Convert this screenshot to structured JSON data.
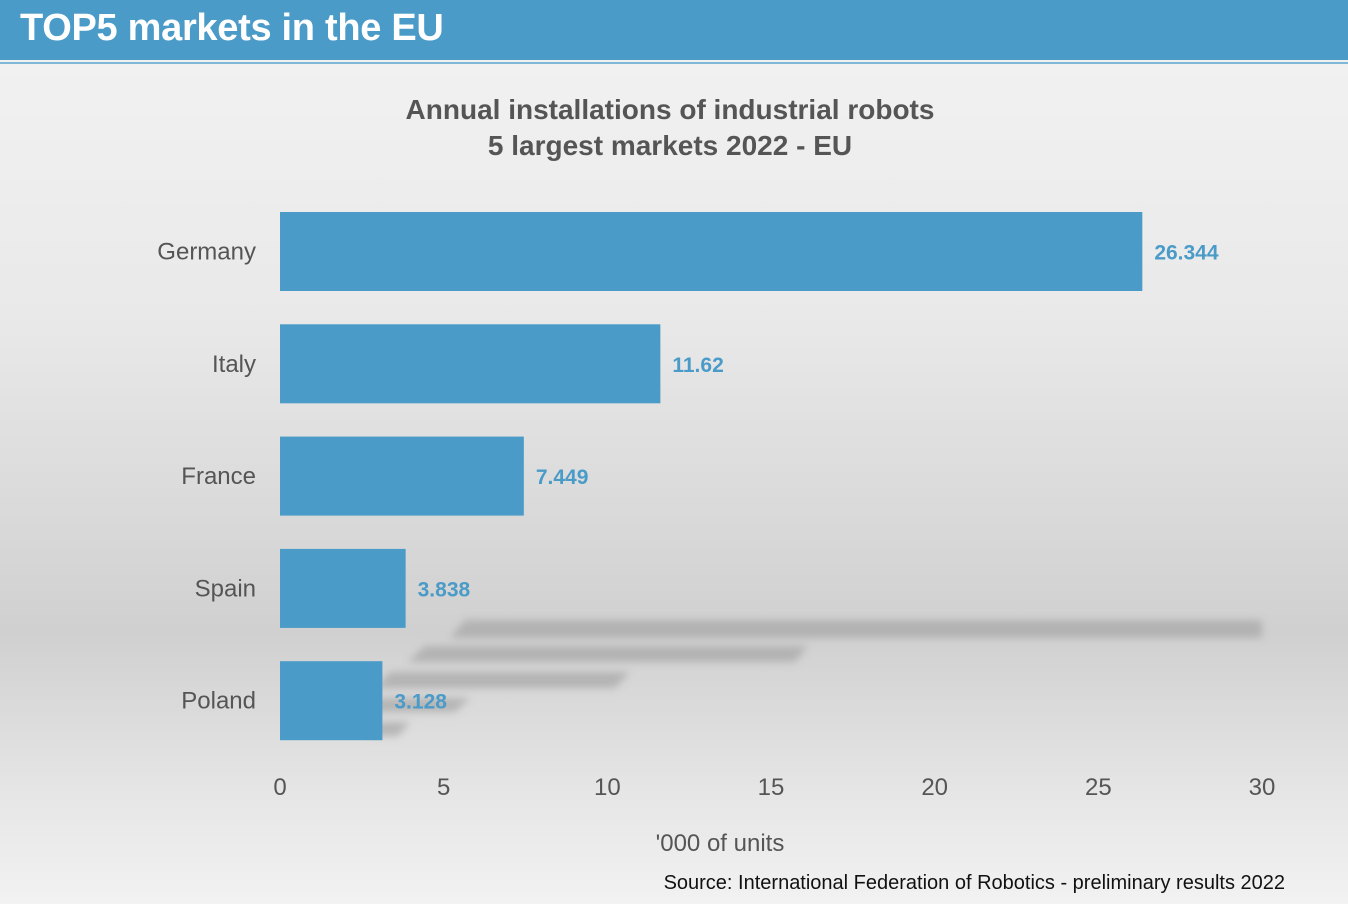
{
  "header": {
    "title": "TOP5 markets in the EU"
  },
  "chart_data": {
    "type": "bar",
    "orientation": "horizontal",
    "title_line1": "Annual installations of industrial robots",
    "title_line2": "5 largest markets 2022 - EU",
    "categories": [
      "Germany",
      "Italy",
      "France",
      "Spain",
      "Poland"
    ],
    "values": [
      26.344,
      11.62,
      7.449,
      3.838,
      3.128
    ],
    "value_labels": [
      "26.344",
      "11.62",
      "7.449",
      "3.838",
      "3.128"
    ],
    "xlim": [
      0,
      30
    ],
    "xticks": [
      0,
      5,
      10,
      15,
      20,
      25,
      30
    ],
    "xlabel": "'000 of units",
    "grid": false,
    "bar_color": "#4a9bc8",
    "label_color": "#4a9bc8"
  },
  "footer": {
    "source": "Source: International Federation of Robotics - preliminary results 2022"
  },
  "colors": {
    "banner": "#4a9bc8",
    "text": "#555555"
  }
}
